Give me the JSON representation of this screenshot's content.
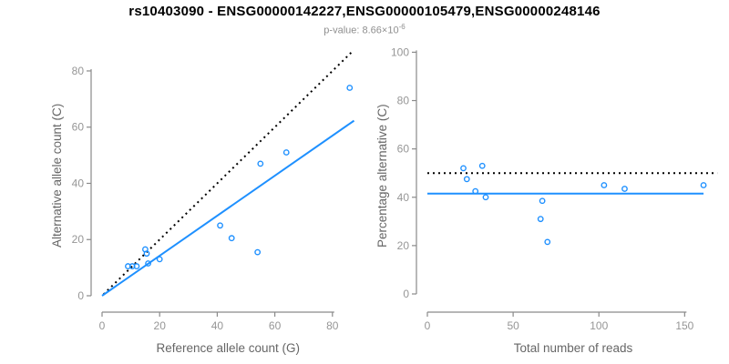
{
  "figure": {
    "title": "rs10403090 - ENSG00000142227,ENSG00000105479,ENSG00000248146",
    "subtitle_prefix": "p-value: 8.66×10",
    "subtitle_exponent": "-6"
  },
  "colors": {
    "accent_blue": "#1E90FF",
    "dotted_black": "#000000",
    "axis_gray": "#8a8a8a",
    "tick_label_gray": "#969696",
    "axis_title_gray": "#666666",
    "subtitle_gray": "#8f8f8f",
    "title_black": "#000000"
  },
  "chart_data": [
    {
      "type": "scatter",
      "panel": "left",
      "xlabel": "Reference allele count (G)",
      "ylabel": "Alternative allele count (C)",
      "xlim": [
        0,
        87.5
      ],
      "ylim": [
        0,
        87.5
      ],
      "xticks": [
        0,
        20,
        40,
        60,
        80
      ],
      "yticks": [
        0,
        20,
        40,
        60,
        80
      ],
      "grid": false,
      "legend": "none",
      "marker": "open-circle",
      "points": [
        [
          9,
          10.5
        ],
        [
          10.5,
          10.5
        ],
        [
          12,
          10.5
        ],
        [
          15,
          16.5
        ],
        [
          15.5,
          15
        ],
        [
          16,
          11.5
        ],
        [
          20,
          13
        ],
        [
          41,
          25
        ],
        [
          45,
          20.5
        ],
        [
          54,
          15.5
        ],
        [
          55,
          47
        ],
        [
          64,
          51
        ],
        [
          86,
          74
        ]
      ],
      "lines": [
        {
          "name": "identity-line",
          "style": "dotted",
          "color": "#000000",
          "from": [
            0.5,
            0.5
          ],
          "to": [
            86.5,
            86.5
          ]
        },
        {
          "name": "regression-line",
          "style": "solid",
          "color": "#1E90FF",
          "from": [
            0,
            0
          ],
          "to": [
            87.5,
            62.3
          ]
        }
      ]
    },
    {
      "type": "scatter",
      "panel": "right",
      "xlabel": "Total number of reads",
      "ylabel": "Percentage alternative (C)",
      "xlim": [
        0,
        170
      ],
      "ylim": [
        0,
        100
      ],
      "xticks": [
        0,
        50,
        100,
        150
      ],
      "yticks": [
        0,
        20,
        40,
        60,
        80,
        100
      ],
      "grid": false,
      "legend": "none",
      "marker": "open-circle",
      "points": [
        [
          21,
          52
        ],
        [
          23,
          47.5
        ],
        [
          28,
          42.5
        ],
        [
          32,
          53
        ],
        [
          34,
          40
        ],
        [
          66,
          31
        ],
        [
          67,
          38.5
        ],
        [
          70,
          21.5
        ],
        [
          103,
          45
        ],
        [
          115,
          43.5
        ],
        [
          161,
          45
        ]
      ],
      "lines": [
        {
          "name": "fifty-percent-line",
          "style": "dotted",
          "color": "#000000",
          "from": [
            0,
            50
          ],
          "to": [
            169,
            50
          ]
        },
        {
          "name": "mean-percentage-line",
          "style": "solid",
          "color": "#1E90FF",
          "from": [
            0,
            41.5
          ],
          "to": [
            161,
            41.5
          ]
        }
      ]
    }
  ]
}
